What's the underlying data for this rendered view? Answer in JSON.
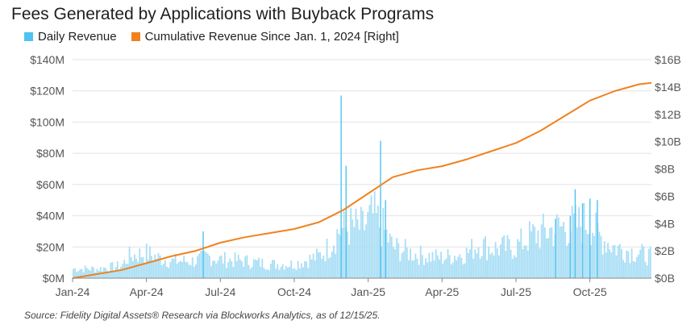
{
  "title": "Fees Generated by Applications with Buyback Programs",
  "source": "Source: Fidelity Digital Assets® Research via Blockworks Analytics, as of 12/15/25.",
  "colors": {
    "daily": "#4fc3f0",
    "daily_fill": "#a9def5",
    "cumulative": "#f0821e",
    "grid": "#e2e2e2",
    "axis": "#888888"
  },
  "chart_data": {
    "type": "bar+line",
    "legend": [
      {
        "name": "Daily Revenue",
        "color": "#4fc3f0"
      },
      {
        "name": "Cumulative Revenue Since Jan. 1, 2024 [Right]",
        "color": "#f0821e"
      }
    ],
    "x_ticks": [
      {
        "label": "Jan-24",
        "month": 0
      },
      {
        "label": "Apr-24",
        "month": 3
      },
      {
        "label": "Jul-24",
        "month": 6
      },
      {
        "label": "Oct-24",
        "month": 9
      },
      {
        "label": "Jan-25",
        "month": 12
      },
      {
        "label": "Apr-25",
        "month": 15
      },
      {
        "label": "Jul-25",
        "month": 18
      },
      {
        "label": "Oct-25",
        "month": 21
      }
    ],
    "x_range_months": [
      0,
      23.5
    ],
    "left_axis": {
      "unit": "$M",
      "ylim": [
        0,
        140
      ],
      "ticks": [
        0,
        20,
        40,
        60,
        80,
        100,
        120,
        140
      ],
      "tick_labels": [
        "$0M",
        "$20M",
        "$40M",
        "$60M",
        "$80M",
        "$100M",
        "$120M",
        "$140M"
      ]
    },
    "right_axis": {
      "unit": "$B",
      "ylim": [
        0,
        16
      ],
      "ticks": [
        0,
        2,
        4,
        6,
        8,
        10,
        12,
        14,
        16
      ],
      "tick_labels": [
        "$0B",
        "$2B",
        "$4B",
        "$6B",
        "$8B",
        "$10B",
        "$12B",
        "$14B",
        "$16B"
      ]
    },
    "series": [
      {
        "name": "Daily Revenue",
        "axis": "left",
        "kind": "bar",
        "daily_level_points": [
          [
            0,
            6
          ],
          [
            1,
            6
          ],
          [
            2,
            8
          ],
          [
            2.3,
            14
          ],
          [
            3,
            16
          ],
          [
            3.5,
            13
          ],
          [
            4,
            11
          ],
          [
            5,
            11
          ],
          [
            5.5,
            14
          ],
          [
            6,
            12
          ],
          [
            7,
            11
          ],
          [
            8,
            9
          ],
          [
            9,
            9
          ],
          [
            10,
            14
          ],
          [
            10.3,
            18
          ],
          [
            10.8,
            30
          ],
          [
            11.3,
            33
          ],
          [
            11.8,
            32
          ],
          [
            12.2,
            40
          ],
          [
            12.6,
            32
          ],
          [
            13,
            20
          ],
          [
            14,
            15
          ],
          [
            15,
            13
          ],
          [
            16,
            16
          ],
          [
            16.5,
            22
          ],
          [
            17,
            19
          ],
          [
            18,
            20
          ],
          [
            18.6,
            27
          ],
          [
            19.5,
            31
          ],
          [
            20,
            33
          ],
          [
            20.5,
            34
          ],
          [
            21,
            37
          ],
          [
            21.3,
            28
          ],
          [
            22,
            20
          ],
          [
            23.5,
            14
          ]
        ],
        "spikes": [
          [
            5.3,
            30
          ],
          [
            10.9,
            117
          ],
          [
            11.1,
            72
          ],
          [
            12.5,
            88
          ],
          [
            12.7,
            50
          ],
          [
            20.4,
            57
          ],
          [
            20.7,
            48
          ],
          [
            21,
            51
          ],
          [
            21.3,
            50
          ],
          [
            19.6,
            38
          ],
          [
            20.2,
            40
          ]
        ]
      },
      {
        "name": "Cumulative Revenue Since Jan. 1, 2024 [Right]",
        "axis": "right",
        "kind": "line",
        "points": [
          [
            0,
            0
          ],
          [
            1,
            0.3
          ],
          [
            2,
            0.6
          ],
          [
            3,
            1.1
          ],
          [
            4,
            1.6
          ],
          [
            5,
            2.0
          ],
          [
            6,
            2.6
          ],
          [
            7,
            3.0
          ],
          [
            8,
            3.3
          ],
          [
            9,
            3.6
          ],
          [
            10,
            4.1
          ],
          [
            11,
            5.0
          ],
          [
            12,
            6.2
          ],
          [
            12.5,
            6.8
          ],
          [
            13,
            7.4
          ],
          [
            14,
            7.9
          ],
          [
            15,
            8.2
          ],
          [
            16,
            8.7
          ],
          [
            17,
            9.3
          ],
          [
            18,
            9.9
          ],
          [
            19,
            10.8
          ],
          [
            20,
            11.9
          ],
          [
            21,
            13.0
          ],
          [
            22,
            13.7
          ],
          [
            23,
            14.2
          ],
          [
            23.5,
            14.3
          ]
        ]
      }
    ]
  }
}
